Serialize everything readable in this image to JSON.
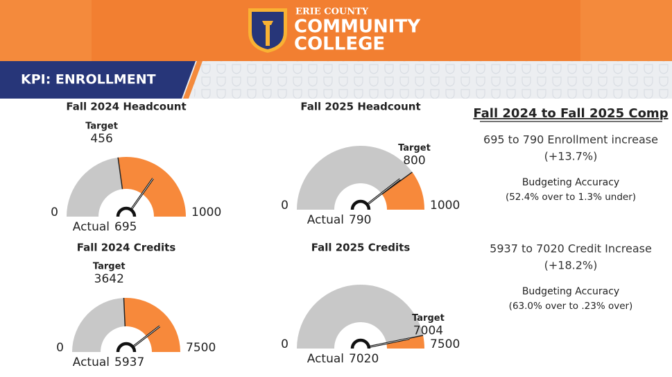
{
  "header": {
    "brand_top": "ERIE COUNTY",
    "brand_line1": "COMMUNITY",
    "brand_line2": "COLLEGE",
    "banner": "KPI: ENROLLMENT"
  },
  "chart_data": [
    {
      "type": "gauge",
      "title": "Fall 2024 Headcount",
      "ylim": [
        0,
        1000
      ],
      "yticks": [
        0,
        1000
      ],
      "target_label": "Target",
      "target": 456,
      "actual_label": "Actual",
      "value": 695,
      "colors": [
        "#c8c8c8",
        "#f7893b"
      ]
    },
    {
      "type": "gauge",
      "title": "Fall 2025 Headcount",
      "ylim": [
        0,
        1000
      ],
      "yticks": [
        0,
        1000
      ],
      "target_label": "Target",
      "target": 800,
      "actual_label": "Actual",
      "value": 790,
      "colors": [
        "#c8c8c8",
        "#f7893b"
      ]
    },
    {
      "type": "gauge",
      "title": "Fall 2024 Credits",
      "ylim": [
        0,
        7500
      ],
      "yticks": [
        0,
        7500
      ],
      "target_label": "Target",
      "target": 3642,
      "actual_label": "Actual",
      "value": 5937,
      "colors": [
        "#c8c8c8",
        "#f7893b"
      ]
    },
    {
      "type": "gauge",
      "title": "Fall 2025 Credits",
      "ylim": [
        0,
        7500
      ],
      "yticks": [
        0,
        7500
      ],
      "target_label": "Target",
      "target": 7004,
      "actual_label": "Actual",
      "value": 7020,
      "colors": [
        "#c8c8c8",
        "#f7893b"
      ]
    }
  ],
  "comparison": {
    "title": "Fall 2024 to Fall 2025 Comp",
    "blocks": [
      {
        "line1": "695 to 790 Enrollment increase",
        "line2": "(+13.7%)",
        "accuracy_title": "Budgeting Accuracy",
        "accuracy": "(52.4% over to 1.3% under)"
      },
      {
        "line1": "5937 to 7020 Credit Increase",
        "line2": "(+18.2%)",
        "accuracy_title": "Budgeting Accuracy",
        "accuracy": "(63.0% over to .23% over)"
      }
    ]
  }
}
